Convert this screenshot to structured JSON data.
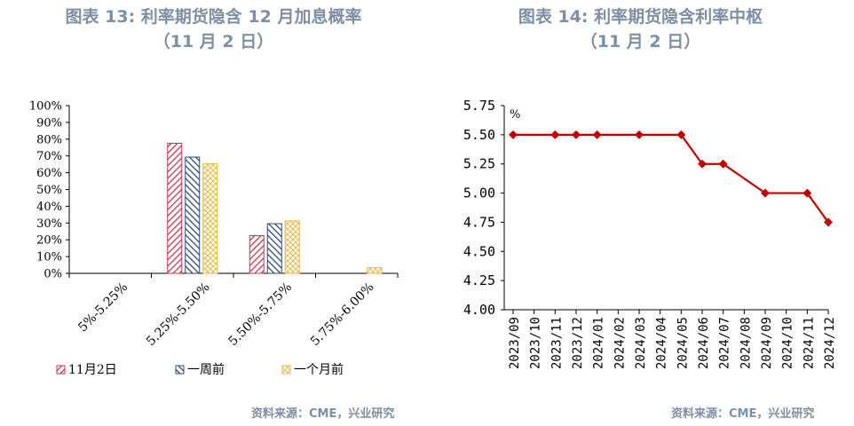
{
  "left": {
    "title": "图表 13: 利率期货隐含 12 月加息概率",
    "subtitle": "（11 月 2 日）",
    "source": "资料来源：CME，兴业研究",
    "chart_data": {
      "type": "bar",
      "categories": [
        "5%-5.25%",
        "5.25%-5.50%",
        "5.50%-5.75%",
        "5.75%-6.00%"
      ],
      "series": [
        {
          "name": "11月2日",
          "values": [
            0,
            77.5,
            22.5,
            0
          ],
          "color": "#c0394f"
        },
        {
          "name": "一周前",
          "values": [
            0,
            69.3,
            29.6,
            0
          ],
          "color": "#2f4a73"
        },
        {
          "name": "一个月前",
          "values": [
            0,
            65.4,
            31.3,
            3.4
          ],
          "color": "#e8b94a"
        }
      ],
      "yticks": [
        "0%",
        "10%",
        "20%",
        "30%",
        "40%",
        "50%",
        "60%",
        "70%",
        "80%",
        "90%",
        "100%"
      ],
      "ylim": [
        0,
        100
      ],
      "legend": "bottom"
    }
  },
  "right": {
    "title": "图表 14: 利率期货隐含利率中枢",
    "subtitle": "（11 月 2 日）",
    "source": "资料来源：CME，兴业研究",
    "chart_data": {
      "type": "line",
      "x": [
        "2023/09",
        "2023/10",
        "2023/11",
        "2023/12",
        "2024/01",
        "2024/02",
        "2024/03",
        "2024/04",
        "2024/05",
        "2024/06",
        "2024/07",
        "2024/08",
        "2024/09",
        "2024/10",
        "2024/11",
        "2024/12"
      ],
      "series": [
        {
          "values": [
            5.5,
            null,
            5.5,
            5.5,
            5.5,
            null,
            5.5,
            null,
            5.5,
            5.25,
            5.25,
            null,
            5.0,
            null,
            5.0,
            4.75
          ],
          "color": "#c00000"
        }
      ],
      "ylabel": "%",
      "yticks": [
        "4.00",
        "4.25",
        "4.50",
        "4.75",
        "5.00",
        "5.25",
        "5.50",
        "5.75"
      ],
      "ylim": [
        4.0,
        5.75
      ]
    }
  }
}
